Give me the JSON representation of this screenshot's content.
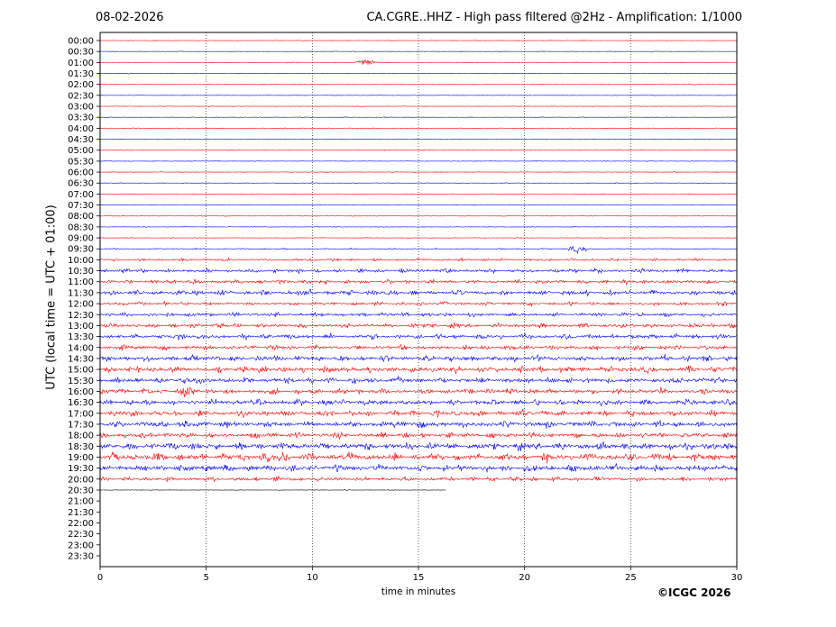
{
  "header": {
    "date": "08-02-2026",
    "title": "CA.CGRE..HHZ - High pass filtered @2Hz - Amplification: 1/1000"
  },
  "footer": {
    "copyright": "©ICGC 2026"
  },
  "chart_data": {
    "type": "line",
    "title": "CA.CGRE..HHZ - High pass filtered @2Hz - Amplification: 1/1000",
    "xlabel": "time in minutes",
    "ylabel": "UTC (local time = UTC + 01:00)",
    "xlim": [
      0,
      30
    ],
    "x_ticks": [
      "0",
      "5",
      "10",
      "15",
      "20",
      "25",
      "30"
    ],
    "y_ticks": [
      "00:00",
      "00:30",
      "01:00",
      "01:30",
      "02:00",
      "02:30",
      "03:00",
      "03:30",
      "04:00",
      "04:30",
      "05:00",
      "05:30",
      "06:00",
      "06:30",
      "07:00",
      "07:30",
      "08:00",
      "08:30",
      "09:00",
      "09:30",
      "10:00",
      "10:30",
      "11:00",
      "11:30",
      "12:00",
      "12:30",
      "13:00",
      "13:30",
      "14:00",
      "14:30",
      "15:00",
      "15:30",
      "16:00",
      "16:30",
      "17:00",
      "17:30",
      "18:00",
      "18:30",
      "19:00",
      "19:30",
      "20:00",
      "20:30",
      "21:00",
      "21:30",
      "22:00",
      "22:30",
      "23:00",
      "23:30"
    ],
    "grid": "vertical dotted at x ticks",
    "trace_colors": [
      "#ff0000",
      "#0000ff"
    ],
    "last_trace_color": "#000000",
    "last_trace_end_minute": 16.3,
    "trace_amplitude_level": [
      0.3,
      0.3,
      0.3,
      0.35,
      0.3,
      0.3,
      0.3,
      0.3,
      0.3,
      0.3,
      0.3,
      0.3,
      0.3,
      0.3,
      0.3,
      0.3,
      0.3,
      0.3,
      0.3,
      0.5,
      1.2,
      1.8,
      1.8,
      2.2,
      1.6,
      1.8,
      2.0,
      2.2,
      2.0,
      2.6,
      2.8,
      2.6,
      2.4,
      2.6,
      2.6,
      2.8,
      2.4,
      3.2,
      3.4,
      3.0,
      2.0,
      0.3
    ],
    "events": [
      {
        "row": 2,
        "minute": 12.5
      },
      {
        "row": 19,
        "minute": 22.5
      },
      {
        "row": 23,
        "minute": 9.7
      },
      {
        "row": 31,
        "minute": 4.3
      },
      {
        "row": 32,
        "minute": 4.0
      },
      {
        "row": 35,
        "minute": 14.5
      },
      {
        "row": 37,
        "minute": 29.8
      },
      {
        "row": 38,
        "minute": 8.6
      }
    ]
  }
}
